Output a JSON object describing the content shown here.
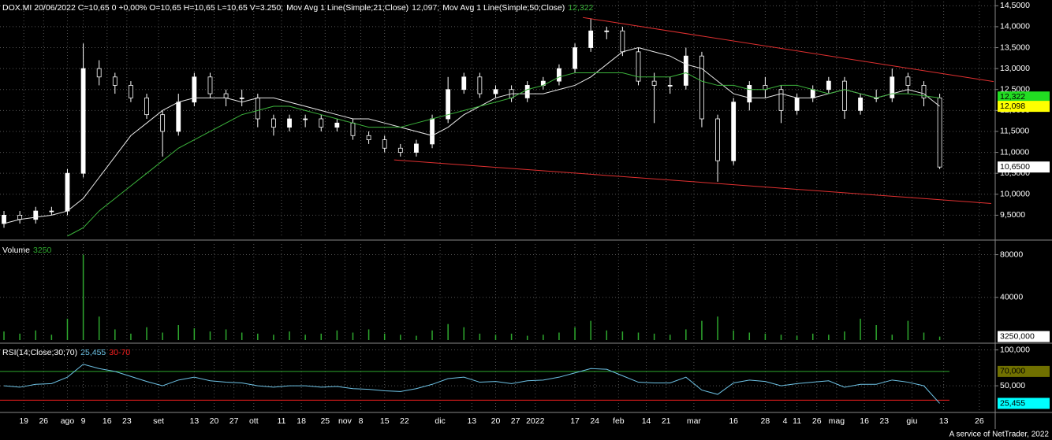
{
  "chart_data": [
    {
      "type": "candlestick",
      "title": "DOX.MI 20/06/2022 C=10,65 0 +0,00% O=10,65 H=10,65 L=10,65 V=3.250;",
      "x": [
        0,
        4,
        8,
        12,
        16,
        20,
        24,
        28,
        32,
        36,
        40,
        44,
        48,
        52,
        56,
        60,
        64,
        68,
        72,
        76,
        80,
        84,
        88,
        92,
        96,
        100,
        104,
        108,
        112,
        116,
        120,
        124,
        128,
        132,
        136,
        140,
        144,
        148,
        152,
        156,
        160,
        164,
        168,
        172,
        176,
        180,
        184,
        188,
        192,
        196,
        200,
        204,
        208,
        212,
        216,
        220,
        224,
        228,
        232,
        236
      ],
      "open": [
        9.3,
        9.5,
        9.4,
        9.6,
        9.6,
        10.5,
        13.0,
        12.8,
        12.6,
        12.3,
        11.9,
        11.5,
        12.2,
        12.8,
        12.4,
        12.3,
        12.3,
        11.8,
        11.6,
        11.8,
        11.8,
        11.6,
        11.7,
        11.4,
        11.3,
        11.1,
        11.0,
        11.2,
        11.8,
        12.5,
        12.8,
        12.4,
        12.5,
        12.3,
        12.6,
        12.7,
        13.0,
        13.5,
        13.9,
        13.9,
        13.4,
        12.7,
        12.6,
        12.6,
        13.3,
        11.8,
        10.8,
        12.2,
        12.6,
        12.5,
        12.0,
        12.3,
        12.5,
        12.7,
        12.0,
        12.3,
        12.3,
        12.8,
        12.6,
        12.3
      ],
      "high": [
        9.6,
        9.6,
        9.7,
        9.7,
        10.6,
        13.6,
        13.2,
        12.9,
        12.7,
        12.4,
        12.0,
        12.4,
        12.9,
        12.9,
        12.5,
        12.5,
        12.4,
        11.9,
        11.9,
        11.9,
        11.9,
        11.8,
        11.8,
        11.5,
        11.4,
        11.2,
        11.3,
        11.9,
        12.8,
        12.9,
        12.9,
        12.6,
        12.6,
        12.7,
        12.8,
        13.1,
        13.6,
        14.2,
        14.0,
        14.0,
        13.5,
        12.9,
        12.8,
        13.5,
        13.4,
        11.9,
        12.3,
        12.7,
        12.8,
        12.6,
        12.4,
        12.6,
        12.8,
        12.8,
        12.4,
        12.5,
        13.0,
        12.9,
        12.7,
        12.4
      ],
      "low": [
        9.2,
        9.3,
        9.3,
        9.5,
        9.5,
        10.4,
        12.6,
        12.4,
        12.2,
        11.8,
        10.9,
        11.4,
        12.1,
        12.3,
        12.1,
        12.1,
        11.6,
        11.4,
        11.5,
        11.6,
        11.5,
        11.5,
        11.3,
        11.2,
        11.0,
        10.9,
        10.9,
        11.1,
        11.7,
        12.4,
        12.3,
        12.3,
        12.2,
        12.2,
        12.5,
        12.6,
        12.9,
        13.4,
        13.7,
        13.3,
        12.6,
        11.7,
        12.4,
        12.5,
        11.6,
        10.3,
        10.7,
        12.0,
        12.3,
        11.7,
        11.9,
        12.2,
        12.4,
        11.8,
        11.9,
        12.2,
        12.2,
        12.4,
        12.1,
        10.6
      ],
      "close": [
        9.5,
        9.4,
        9.6,
        9.6,
        10.5,
        13.0,
        12.8,
        12.6,
        12.3,
        11.9,
        11.5,
        12.2,
        12.8,
        12.4,
        12.3,
        12.3,
        11.8,
        11.6,
        11.8,
        11.8,
        11.6,
        11.7,
        11.4,
        11.3,
        11.1,
        11.0,
        11.2,
        11.8,
        12.5,
        12.8,
        12.4,
        12.5,
        12.3,
        12.6,
        12.7,
        13.0,
        13.5,
        13.9,
        13.9,
        13.4,
        12.7,
        12.6,
        12.6,
        13.3,
        11.8,
        10.8,
        12.2,
        12.6,
        12.5,
        12.0,
        12.3,
        12.5,
        12.7,
        12.0,
        12.3,
        12.3,
        12.8,
        12.6,
        12.3,
        10.65
      ],
      "series": [
        {
          "name": "Mov Avg 1 Line(Simple;21;Close)",
          "color": "#e8e8e8",
          "last_label": "12,097;",
          "values": [
            9.3,
            9.4,
            9.45,
            9.5,
            9.6,
            9.9,
            10.4,
            10.9,
            11.4,
            11.7,
            12.0,
            12.2,
            12.3,
            12.3,
            12.3,
            12.2,
            12.3,
            12.3,
            12.2,
            12.1,
            12.0,
            11.9,
            11.8,
            11.8,
            11.7,
            11.6,
            11.5,
            11.4,
            11.6,
            11.9,
            12.1,
            12.3,
            12.4,
            12.4,
            12.4,
            12.5,
            12.6,
            12.8,
            13.1,
            13.4,
            13.5,
            13.4,
            13.3,
            13.1,
            13.0,
            12.7,
            12.4,
            12.3,
            12.3,
            12.4,
            12.3,
            12.3,
            12.4,
            12.5,
            12.4,
            12.3,
            12.4,
            12.5,
            12.4,
            12.1
          ]
        },
        {
          "name": "Mov Avg 1 Line(Simple;50;Close)",
          "color": "#3cb43c",
          "last_label": "12,322",
          "values": [
            null,
            null,
            null,
            null,
            9.0,
            9.2,
            9.6,
            9.9,
            10.2,
            10.5,
            10.8,
            11.1,
            11.3,
            11.5,
            11.7,
            11.9,
            12.0,
            12.1,
            12.1,
            12.0,
            11.9,
            11.8,
            11.7,
            11.6,
            11.6,
            11.6,
            11.7,
            11.8,
            11.9,
            12.0,
            12.1,
            12.2,
            12.3,
            12.5,
            12.6,
            12.8,
            12.9,
            12.9,
            12.9,
            12.9,
            12.8,
            12.8,
            12.8,
            12.9,
            12.7,
            12.6,
            12.6,
            12.5,
            12.5,
            12.6,
            12.6,
            12.5,
            12.4,
            12.5,
            12.4,
            12.3,
            12.4,
            12.4,
            12.35,
            12.3
          ]
        }
      ],
      "trendlines": [
        {
          "color": "#e03030",
          "x": [
            146,
            249.6
          ],
          "y": [
            14.22,
            12.69
          ]
        },
        {
          "color": "#e03030",
          "x": [
            98.4,
            249
          ],
          "y": [
            10.82,
            9.78
          ]
        }
      ],
      "xlim": [
        -1,
        250
      ],
      "xticks": [
        {
          "value": 5,
          "label": "19"
        },
        {
          "value": 10,
          "label": "26"
        },
        {
          "value": 16,
          "label": "ago"
        },
        {
          "value": 20,
          "label": "9"
        },
        {
          "value": 26,
          "label": "16"
        },
        {
          "value": 31,
          "label": "23"
        },
        {
          "value": 39,
          "label": "set"
        },
        {
          "value": 48,
          "label": "13"
        },
        {
          "value": 53,
          "label": "20"
        },
        {
          "value": 58,
          "label": "27"
        },
        {
          "value": 63,
          "label": "ott"
        },
        {
          "value": 70,
          "label": "11"
        },
        {
          "value": 75,
          "label": "18"
        },
        {
          "value": 81,
          "label": "25"
        },
        {
          "value": 86,
          "label": "nov"
        },
        {
          "value": 90,
          "label": "8"
        },
        {
          "value": 96,
          "label": "15"
        },
        {
          "value": 101,
          "label": "22"
        },
        {
          "value": 110,
          "label": "dic"
        },
        {
          "value": 118,
          "label": "13"
        },
        {
          "value": 124,
          "label": "20"
        },
        {
          "value": 129,
          "label": "27"
        },
        {
          "value": 134,
          "label": "2022"
        },
        {
          "value": 144,
          "label": "17"
        },
        {
          "value": 149,
          "label": "24"
        },
        {
          "value": 155,
          "label": "feb"
        },
        {
          "value": 162,
          "label": "14"
        },
        {
          "value": 167,
          "label": "21"
        },
        {
          "value": 174,
          "label": "mar"
        },
        {
          "value": 184,
          "label": "16"
        },
        {
          "value": 192,
          "label": "28"
        },
        {
          "value": 197,
          "label": "4"
        },
        {
          "value": 200,
          "label": "11"
        },
        {
          "value": 205,
          "label": "26"
        },
        {
          "value": 210,
          "label": "mag"
        },
        {
          "value": 217,
          "label": "16"
        },
        {
          "value": 222,
          "label": "23"
        },
        {
          "value": 229,
          "label": "giu"
        },
        {
          "value": 237,
          "label": "13"
        },
        {
          "value": 246,
          "label": "26"
        }
      ],
      "ylim": [
        9.0,
        14.6
      ],
      "yticks": [
        {
          "value": 9.5,
          "label": "9,5000"
        },
        {
          "value": 10,
          "label": "10,0000"
        },
        {
          "value": 10.5,
          "label": "10,5000"
        },
        {
          "value": 11,
          "label": "11,0000"
        },
        {
          "value": 11.5,
          "label": "11,5000"
        },
        {
          "value": 12,
          "label": "12,0000"
        },
        {
          "value": 12.5,
          "label": "12,5000"
        },
        {
          "value": 13,
          "label": "13,0000"
        },
        {
          "value": 13.5,
          "label": "13,5000"
        },
        {
          "value": 14,
          "label": "14,0000"
        },
        {
          "value": 14.5,
          "label": "14,5000"
        }
      ],
      "markers": [
        {
          "value": 12.322,
          "label": "12,322",
          "color": "#22dd22"
        },
        {
          "value": 12.098,
          "label": "12,098",
          "color": "#ffff00"
        },
        {
          "value": 10.65,
          "label": "10,6500",
          "color": "#ffffff"
        }
      ],
      "grid": true
    },
    {
      "type": "bar",
      "title": "Volume",
      "last_label": "3250",
      "color": "#2ea82e",
      "values": [
        8000,
        6000,
        9000,
        5000,
        20000,
        80000,
        22000,
        10000,
        6000,
        12000,
        7000,
        14000,
        11000,
        8000,
        10000,
        7000,
        6000,
        5000,
        8000,
        5000,
        6000,
        9000,
        7000,
        10000,
        6000,
        5000,
        4000,
        9000,
        15000,
        12000,
        6000,
        5000,
        6000,
        4000,
        5000,
        7000,
        12000,
        18000,
        9000,
        8000,
        7000,
        6000,
        5000,
        10000,
        18000,
        22000,
        9000,
        7000,
        6000,
        5000,
        4000,
        6000,
        5000,
        8000,
        20000,
        14000,
        5000,
        18000,
        7000,
        3250
      ],
      "ylim": [
        0,
        90000
      ],
      "yticks": [
        40000,
        80000
      ],
      "markers": [
        {
          "value": 3250,
          "label": "3250,000",
          "color": "#ffffff"
        }
      ],
      "grid": true
    },
    {
      "type": "line",
      "title": "RSI(14;Close;30;70)",
      "last_label": "25,455",
      "bands_label": "30-70",
      "color": "#6ec3e6",
      "values": [
        50,
        48,
        52,
        53,
        62,
        80,
        74,
        70,
        63,
        56,
        50,
        58,
        62,
        57,
        55,
        54,
        50,
        48,
        50,
        50,
        48,
        49,
        46,
        45,
        43,
        42,
        46,
        52,
        60,
        62,
        55,
        56,
        53,
        57,
        58,
        62,
        68,
        74,
        73,
        64,
        55,
        54,
        54,
        62,
        44,
        38,
        54,
        58,
        56,
        50,
        53,
        55,
        57,
        48,
        52,
        52,
        58,
        55,
        50,
        25.455
      ],
      "bands": [
        {
          "value": 30,
          "color": "#ff2020"
        },
        {
          "value": 70,
          "color": "#2ea82e"
        }
      ],
      "ylim": [
        15,
        105
      ],
      "yticks": [
        {
          "value": 50,
          "label": "50,000"
        },
        {
          "value": 100,
          "label": "100,000"
        }
      ],
      "markers": [
        {
          "value": 70,
          "label": "70,000",
          "color": "#707000"
        },
        {
          "value": 25.455,
          "label": "25,455",
          "color": "#00ffff"
        }
      ],
      "grid": true
    }
  ],
  "footer": "A service of NetTrader, 2022"
}
